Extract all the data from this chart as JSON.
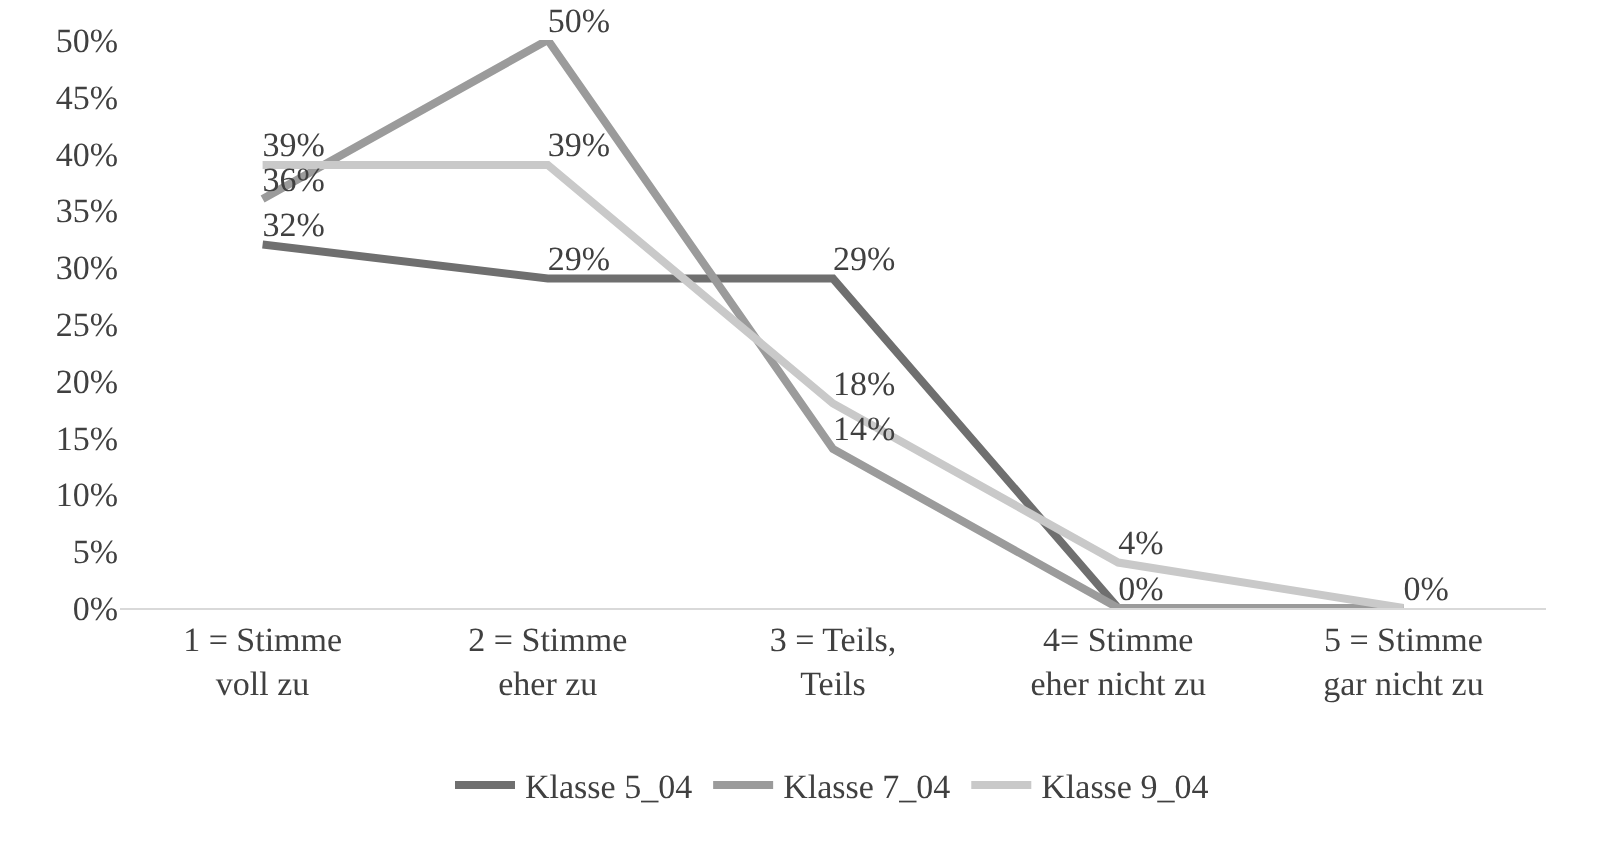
{
  "chart_data": {
    "type": "line",
    "categories": [
      "1 = Stimme\nvoll zu",
      "2 = Stimme\neher zu",
      "3 = Teils,\nTeils",
      "4= Stimme\neher nicht zu",
      "5 = Stimme\ngar nicht zu"
    ],
    "series": [
      {
        "name": "Klasse 5_04",
        "color": "#6f6f6f",
        "values": [
          32,
          29,
          29,
          0,
          0
        ],
        "value_labels": [
          "32%",
          "29%",
          "29%",
          null,
          null
        ]
      },
      {
        "name": "Klasse 7_04",
        "color": "#9b9b9b",
        "values": [
          36,
          50,
          14,
          0,
          0
        ],
        "value_labels": [
          "36%",
          "50%",
          "14%",
          "0%",
          null
        ]
      },
      {
        "name": "Klasse 9_04",
        "color": "#c9c9c9",
        "values": [
          39,
          39,
          18,
          4,
          0
        ],
        "value_labels": [
          "39%",
          "39%",
          "18%",
          "4%",
          "0%"
        ]
      }
    ],
    "ylim": [
      0,
      50
    ],
    "yticks": [
      {
        "value": 0,
        "label": "0%"
      },
      {
        "value": 5,
        "label": "5%"
      },
      {
        "value": 10,
        "label": "10%"
      },
      {
        "value": 15,
        "label": "15%"
      },
      {
        "value": 20,
        "label": "20%"
      },
      {
        "value": 25,
        "label": "25%"
      },
      {
        "value": 30,
        "label": "30%"
      },
      {
        "value": 35,
        "label": "35%"
      },
      {
        "value": 40,
        "label": "40%"
      },
      {
        "value": 45,
        "label": "45%"
      },
      {
        "value": 50,
        "label": "50%"
      }
    ],
    "grid": false,
    "legend": "bottom",
    "marker": "none",
    "line_style": "solid"
  }
}
